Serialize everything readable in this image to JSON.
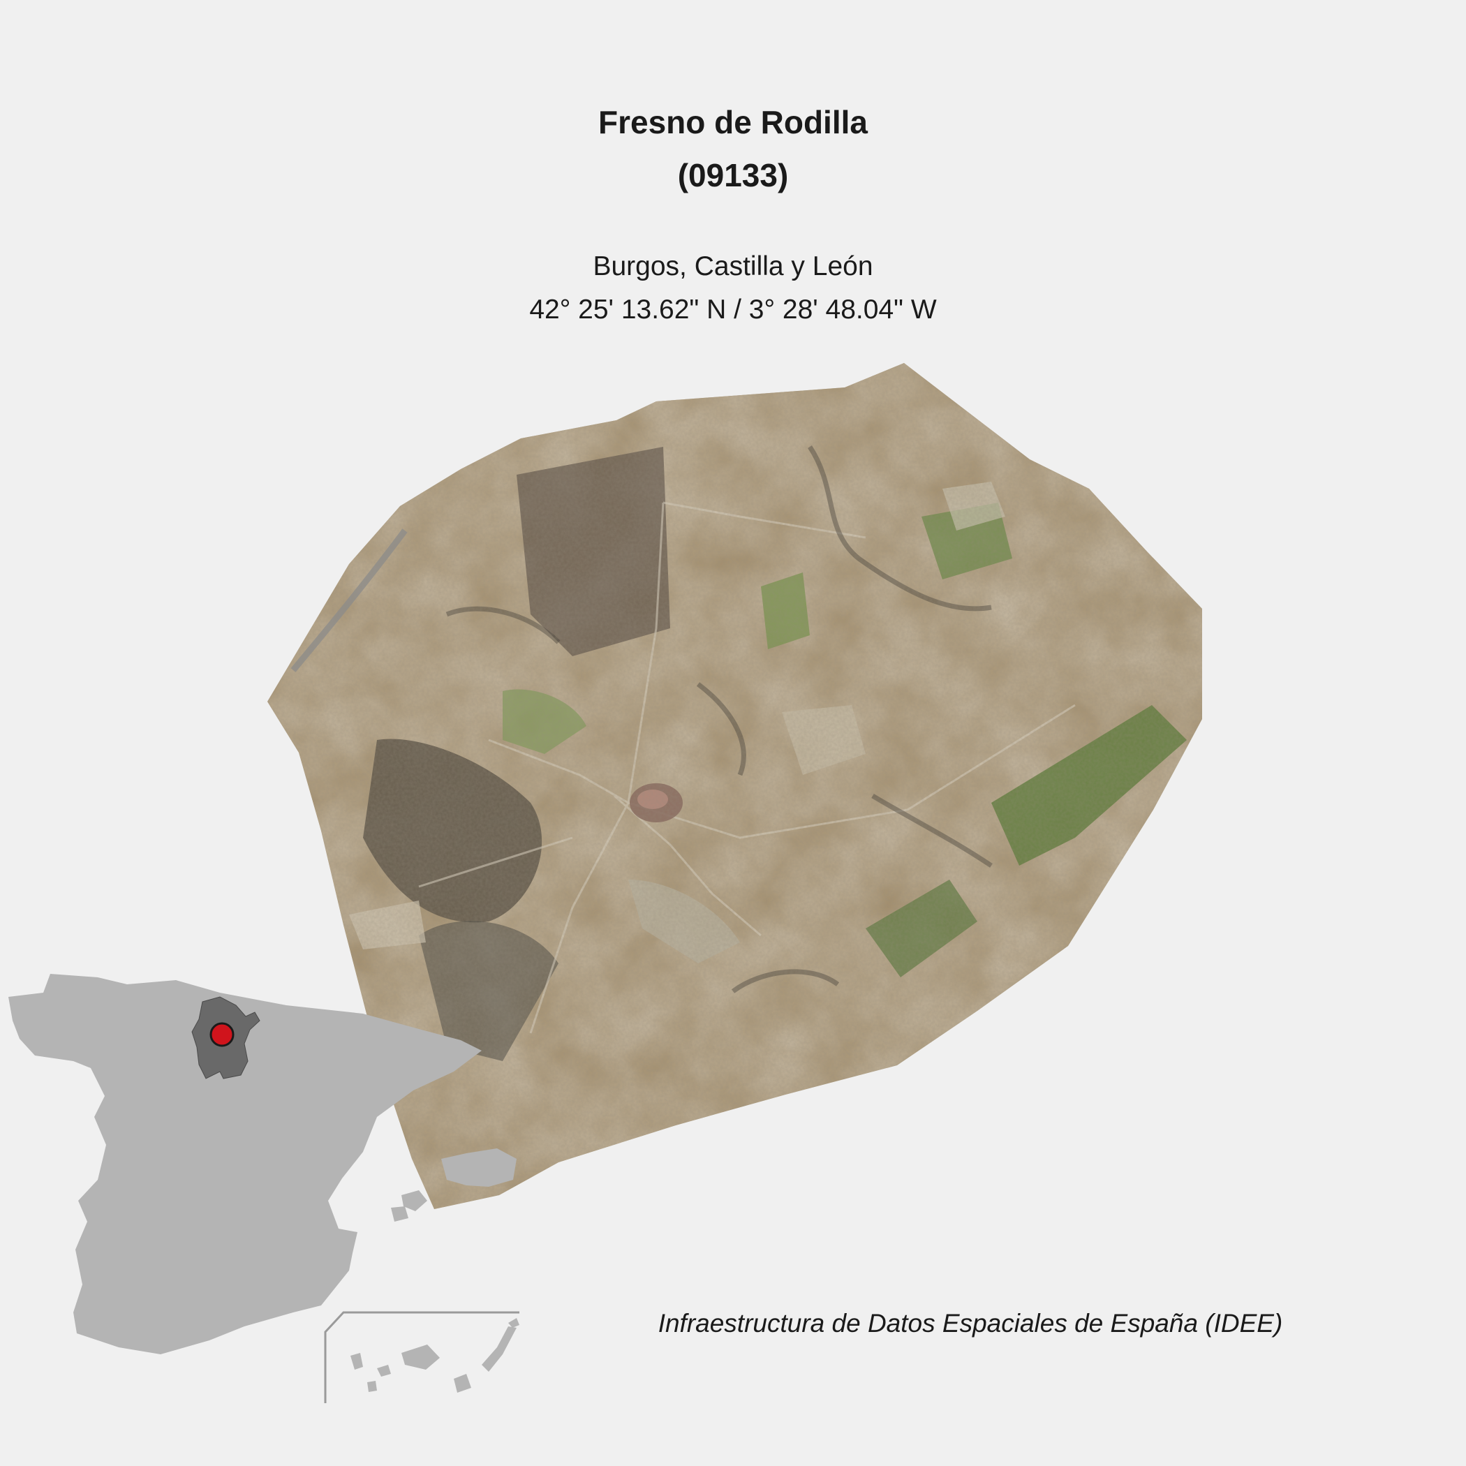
{
  "map": {
    "title": "Fresno de Rodilla",
    "code": "(09133)",
    "region": "Burgos, Castilla y León",
    "coordinates": "42° 25' 13.62\" N / 3° 28' 48.04\" W",
    "source": "Infraestructura de Datos Espaciales de España (IDEE)"
  },
  "colors": {
    "background": "#f0f0f0",
    "spain_fill": "#b4b4b4",
    "province_fill": "#696969",
    "marker_fill": "#d0141c",
    "field_tan": "#a08a66",
    "field_dark": "#5c5448",
    "field_green": "#6e8a4a"
  }
}
